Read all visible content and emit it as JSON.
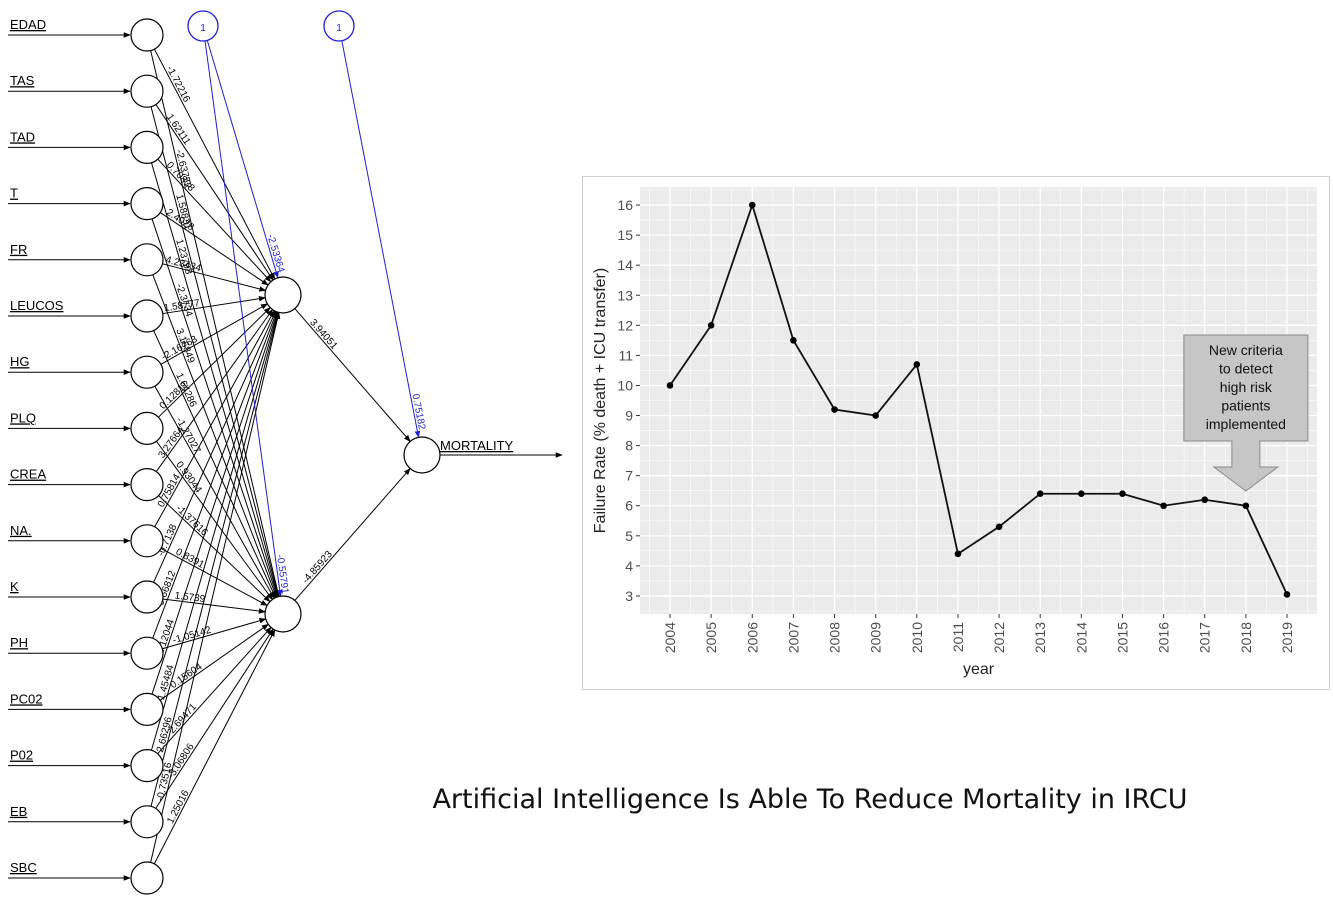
{
  "network": {
    "inputs": [
      "EDAD",
      "TAS",
      "TAD",
      "T",
      "FR",
      "LEUCOS",
      "HG",
      "PLQ",
      "CREA",
      "NA.",
      "K",
      "PH",
      "PC02",
      "P02",
      "EB",
      "SBC"
    ],
    "bias_labels": [
      "1",
      "1"
    ],
    "hidden_bias_weights": [
      "-2.53364",
      "-0.55791"
    ],
    "output_bias_weight": "0.75182",
    "hidden_to_output_weights": [
      "3.94051",
      "-4.85923"
    ],
    "output_label": "MORTALITY",
    "input_weight_labels_h1": [
      "-1.72216",
      "1.62111",
      "0.70838",
      "2.4028",
      "4.23434",
      "1.58777",
      "-2.16763",
      "0.12811",
      "3.27664",
      "0.75814",
      "-0.7138",
      "0.66812",
      "1.12044",
      "-1.45484",
      "2.66296",
      "-0.73516"
    ],
    "input_weight_labels_h2": [
      "-2.63752",
      "1.58831",
      "1.23798",
      "-2.3734",
      "3.16849",
      "1.64286",
      "-1.27027",
      "0.93044",
      "-1.37616",
      "0.8391",
      "1.5739",
      "-1.05142",
      "0.15604",
      "2.69471",
      "-3.06806",
      "1.25016"
    ],
    "colors": {
      "bias": "#1f1fd0",
      "edge": "#000000"
    }
  },
  "chart_data": {
    "type": "line",
    "x": [
      2004,
      2005,
      2006,
      2007,
      2008,
      2009,
      2010,
      2011,
      2012,
      2013,
      2014,
      2015,
      2016,
      2017,
      2018,
      2019
    ],
    "values": [
      10,
      12,
      16,
      11.5,
      9.2,
      9.0,
      10.7,
      4.4,
      5.3,
      6.4,
      6.4,
      6.4,
      6.0,
      6.2,
      6.0,
      3.05
    ],
    "xlabel": "year",
    "ylabel": "Failure Rate (% death + ICU transfer)",
    "ylim": [
      2.4,
      16.6
    ],
    "yticks": [
      3,
      4,
      5,
      6,
      7,
      8,
      9,
      10,
      11,
      12,
      13,
      14,
      15,
      16
    ],
    "grid": true,
    "annotation": {
      "lines": [
        "New criteria",
        "to detect",
        "high risk",
        "patients",
        "implemented"
      ],
      "year": 2018,
      "color": "#c6c6c6"
    }
  },
  "caption": "Artificial Intelligence Is Able To Reduce Mortality in IRCU"
}
